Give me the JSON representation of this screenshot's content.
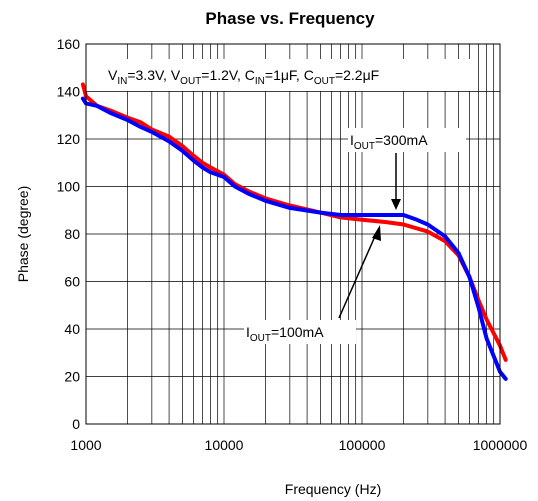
{
  "chart_data": {
    "type": "line",
    "title": "Phase vs. Frequency",
    "xlabel": "Frequency (Hz)",
    "ylabel": "Phase (degree)",
    "x_scale": "log",
    "xlim": [
      1000,
      1000000
    ],
    "ylim": [
      0,
      160
    ],
    "x_ticks": [
      1000,
      10000,
      100000,
      1000000
    ],
    "x_tick_labels": [
      "1000",
      "10000",
      "100000",
      "1000000"
    ],
    "y_ticks": [
      0,
      20,
      40,
      60,
      80,
      100,
      120,
      140,
      160
    ],
    "y_tick_labels": [
      "0",
      "20",
      "40",
      "60",
      "80",
      "100",
      "120",
      "140",
      "160"
    ],
    "grid": true,
    "colors": {
      "red": "#ff0000",
      "blue": "#0000ff"
    },
    "conditions": {
      "vin": {
        "sym": "V",
        "sub": "IN",
        "val": "=3.3V, "
      },
      "vout": {
        "sym": "V",
        "sub": "OUT",
        "val": "=1.2V, "
      },
      "cin": {
        "sym": "C",
        "sub": "IN",
        "val": "=1μF, "
      },
      "cout": {
        "sym": "C",
        "sub": "OUT",
        "val": "=2.2μF"
      }
    },
    "series": [
      {
        "name": "IOUT=100mA",
        "label": {
          "sym": "I",
          "sub": "OUT",
          "val": "=100mA"
        },
        "color": "#ff0000",
        "x": [
          950,
          1000,
          1200,
          1500,
          2000,
          2500,
          3000,
          4000,
          5000,
          6000,
          7000,
          8000,
          10000,
          12000,
          15000,
          20000,
          30000,
          50000,
          70000,
          100000,
          150000,
          200000,
          300000,
          400000,
          500000,
          600000,
          700000,
          800000,
          1000000,
          1100000
        ],
        "y": [
          143,
          138,
          134,
          132,
          129,
          127,
          124,
          121,
          117,
          113,
          110,
          108,
          105,
          101,
          98,
          95,
          92,
          89,
          87,
          86,
          85,
          84,
          81,
          77,
          71,
          62,
          52,
          44,
          33,
          27
        ]
      },
      {
        "name": "IOUT=300mA",
        "label": {
          "sym": "I",
          "sub": "OUT",
          "val": "=300mA"
        },
        "color": "#0000ff",
        "x": [
          950,
          1000,
          1200,
          1500,
          2000,
          2500,
          3000,
          4000,
          5000,
          6000,
          7000,
          8000,
          10000,
          12000,
          15000,
          20000,
          30000,
          50000,
          70000,
          100000,
          150000,
          200000,
          250000,
          300000,
          400000,
          500000,
          600000,
          700000,
          800000,
          1000000,
          1100000
        ],
        "y": [
          137,
          135,
          134,
          131,
          128,
          125,
          123,
          119,
          115,
          111,
          108,
          106,
          104,
          100,
          97,
          94,
          91,
          89,
          88,
          88,
          88,
          88,
          86,
          84,
          79,
          72,
          62,
          49,
          36,
          22,
          19
        ]
      }
    ]
  }
}
